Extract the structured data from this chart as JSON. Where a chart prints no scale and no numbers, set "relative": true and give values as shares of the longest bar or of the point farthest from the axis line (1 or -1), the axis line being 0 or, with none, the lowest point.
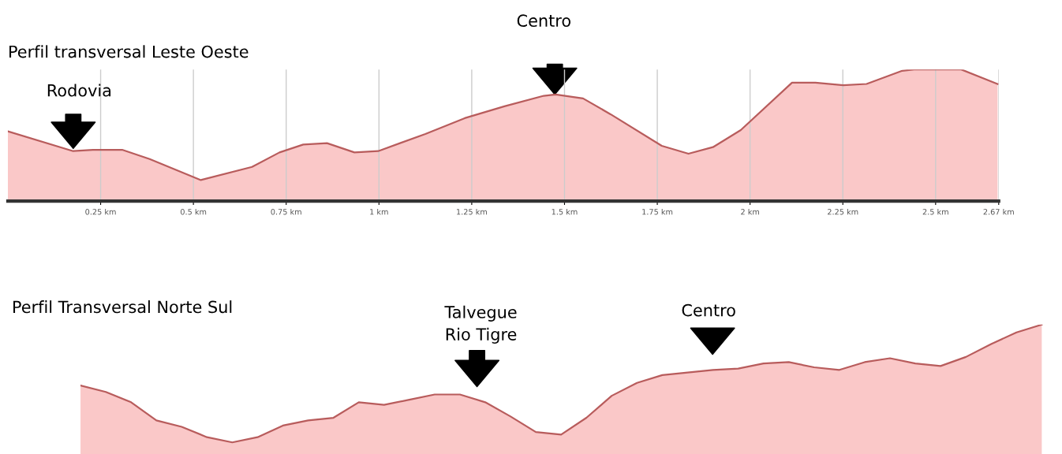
{
  "chart_data": [
    {
      "type": "area",
      "title": "Perfil transversal Leste Oeste",
      "relative": true,
      "grid": "x",
      "x": [
        0,
        0.176,
        0.229,
        0.308,
        0.382,
        0.52,
        0.658,
        0.732,
        0.796,
        0.86,
        0.934,
        0.998,
        1.125,
        1.231,
        1.338,
        1.444,
        1.476,
        1.55,
        1.624,
        1.762,
        1.834,
        1.9,
        1.975,
        2.113,
        2.176,
        2.251,
        2.314,
        2.41,
        2.442,
        2.569,
        2.667
      ],
      "series": [
        {
          "color": "#b85c5c",
          "values": [
            0.53,
            0.38,
            0.39,
            0.39,
            0.32,
            0.16,
            0.26,
            0.37,
            0.43,
            0.44,
            0.37,
            0.38,
            0.51,
            0.63,
            0.72,
            0.8,
            0.81,
            0.78,
            0.66,
            0.42,
            0.36,
            0.41,
            0.54,
            0.9,
            0.9,
            0.88,
            0.89,
            0.99,
            1,
            1,
            0.89
          ]
        }
      ],
      "xlim": [
        0,
        2.67
      ],
      "xticks": [
        {
          "value": 0.25,
          "label": "0.25 km"
        },
        {
          "value": 0.5,
          "label": "0.5 km"
        },
        {
          "value": 0.75,
          "label": "0.75 km"
        },
        {
          "value": 1,
          "label": "1 km"
        },
        {
          "value": 1.25,
          "label": "1.25 km"
        },
        {
          "value": 1.5,
          "label": "1.5 km"
        },
        {
          "value": 1.75,
          "label": "1.75 km"
        },
        {
          "value": 2,
          "label": "2 km"
        },
        {
          "value": 2.25,
          "label": "2.25 km"
        },
        {
          "value": 2.5,
          "label": "2.5 km"
        },
        {
          "value": 2.67,
          "label": "2.67 km"
        }
      ],
      "annotations": [
        "Rodovia",
        "Centro"
      ]
    },
    {
      "type": "area",
      "title": "Perfil Transversal Norte Sul",
      "relative": true,
      "categories": [
        null,
        null,
        null,
        null,
        null,
        null,
        null,
        null,
        null,
        null,
        null,
        null,
        null,
        null,
        null,
        null,
        null,
        null,
        null,
        null,
        null,
        null,
        null,
        null,
        null,
        null,
        null,
        null,
        null,
        null,
        null,
        null,
        null,
        null,
        null,
        null,
        null,
        null,
        null
      ],
      "series": [
        {
          "color": "#b85c5c",
          "values": [
            0.53,
            0.48,
            0.4,
            0.26,
            0.21,
            0.13,
            0.09,
            0.13,
            0.22,
            0.26,
            0.28,
            0.4,
            0.38,
            0.42,
            0.46,
            0.46,
            0.4,
            0.29,
            0.17,
            0.15,
            0.28,
            0.45,
            0.55,
            0.61,
            0.63,
            0.65,
            0.66,
            0.7,
            0.71,
            0.67,
            0.65,
            0.71,
            0.74,
            0.7,
            0.68,
            0.75,
            0.85,
            0.94,
            1
          ]
        }
      ],
      "annotations": [
        "Talvegue\nRio Tigre",
        "Centro"
      ]
    }
  ]
}
